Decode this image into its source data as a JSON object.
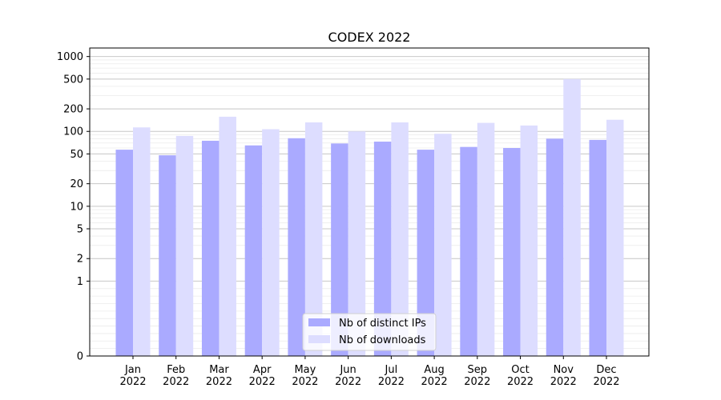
{
  "chart_data": {
    "type": "bar",
    "title": "CODEX 2022",
    "xlabel": "",
    "ylabel": "",
    "y_scale": "symlog",
    "y_linthresh": 1,
    "ylim": [
      0,
      1300
    ],
    "grid": "horizontal major and minor",
    "legend_position": "lower-center",
    "categories": [
      "Jan\n2022",
      "Feb\n2022",
      "Mar\n2022",
      "Apr\n2022",
      "May\n2022",
      "Jun\n2022",
      "Jul\n2022",
      "Aug\n2022",
      "Sep\n2022",
      "Oct\n2022",
      "Nov\n2022",
      "Dec\n2022"
    ],
    "y_ticks": [
      0,
      1,
      2,
      5,
      10,
      20,
      50,
      100,
      200,
      500,
      1000
    ],
    "y_tick_labels": [
      "0",
      "1",
      "2",
      "5",
      "10",
      "20",
      "50",
      "100",
      "200",
      "500",
      "1000"
    ],
    "series": [
      {
        "name": "Nb of distinct IPs",
        "color": "#aaaaff",
        "values": [
          57,
          48,
          75,
          65,
          81,
          69,
          73,
          57,
          62,
          60,
          80,
          77
        ]
      },
      {
        "name": "Nb of downloads",
        "color": "#ddddff",
        "values": [
          113,
          87,
          157,
          107,
          132,
          100,
          132,
          93,
          130,
          120,
          500,
          143
        ]
      }
    ]
  }
}
